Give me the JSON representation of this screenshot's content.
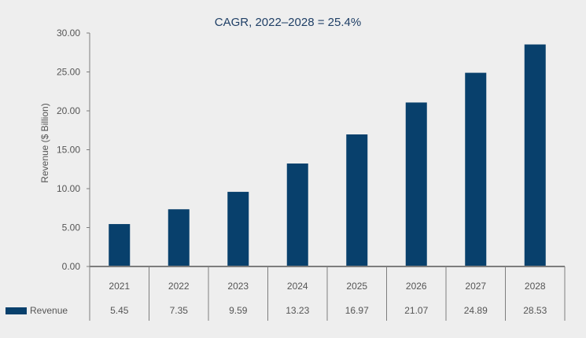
{
  "colors": {
    "bar": "#08406c",
    "axis": "#7d7d7d",
    "text": "#555555",
    "title": "#1f3f66",
    "background": "#eeeeee"
  },
  "chart_data": {
    "type": "bar",
    "title": "CAGR, 2022–2028 = 25.4%",
    "ylabel": "Revenue ($ Billion)",
    "xlabel": "",
    "ylim": [
      0,
      30
    ],
    "yticks": [
      "0.00",
      "5.00",
      "10.00",
      "15.00",
      "20.00",
      "25.00",
      "30.00"
    ],
    "grid": false,
    "legend_position": "bottom-left (data table)",
    "categories": [
      "2021",
      "2022",
      "2023",
      "2024",
      "2025",
      "2026",
      "2027",
      "2028"
    ],
    "series": [
      {
        "name": "Revenue",
        "values": [
          5.45,
          7.35,
          9.59,
          13.23,
          16.97,
          21.07,
          24.89,
          28.53
        ],
        "labels": [
          "5.45",
          "7.35",
          "9.59",
          "13.23",
          "16.97",
          "21.07",
          "24.89",
          "28.53"
        ]
      }
    ]
  }
}
